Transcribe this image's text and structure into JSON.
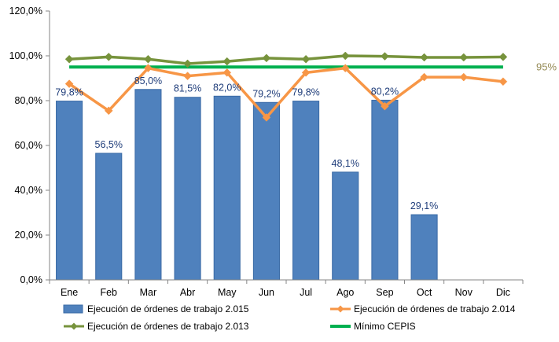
{
  "chart_data": {
    "type": "bar",
    "categories": [
      "Ene",
      "Feb",
      "Mar",
      "Abr",
      "May",
      "Jun",
      "Jul",
      "Ago",
      "Sep",
      "Oct",
      "Nov",
      "Dic"
    ],
    "ylim": [
      0,
      120
    ],
    "yticks": [
      "0,0%",
      "20,0%",
      "40,0%",
      "60,0%",
      "80,0%",
      "100,0%",
      "120,0%"
    ],
    "ytick_values": [
      0,
      20,
      40,
      60,
      80,
      100,
      120
    ],
    "grid": false,
    "legend_position": "bottom",
    "series": [
      {
        "name": "Ejecución de órdenes de trabajo 2.015",
        "type": "bar",
        "color": "#4F81BD",
        "values": [
          79.8,
          56.5,
          85.0,
          81.5,
          82.0,
          79.2,
          79.8,
          48.1,
          80.2,
          29.1,
          null,
          null
        ],
        "labels": [
          "79,8%",
          "56,5%",
          "85,0%",
          "81,5%",
          "82,0%",
          "79,2%",
          "79,8%",
          "48,1%",
          "80,2%",
          "29,1%",
          "",
          ""
        ]
      },
      {
        "name": "Ejecución de órdenes de trabajo 2.014",
        "type": "line",
        "marker": "diamond",
        "color": "#F79646",
        "values": [
          87.5,
          75.5,
          94.5,
          91.0,
          92.5,
          72.5,
          92.5,
          94.5,
          77.5,
          90.5,
          90.5,
          88.5
        ]
      },
      {
        "name": "Ejecución de órdenes de trabajo 2.013",
        "type": "line",
        "marker": "diamond",
        "color": "#77933C",
        "values": [
          98.5,
          99.5,
          98.5,
          96.5,
          97.5,
          99.0,
          98.5,
          100.0,
          99.8,
          99.3,
          99.3,
          99.5
        ]
      },
      {
        "name": "Mínimo CEPIS",
        "type": "line",
        "color": "#00B050",
        "values": [
          95,
          95,
          95,
          95,
          95,
          95,
          95,
          95,
          95,
          95,
          95,
          95
        ]
      }
    ],
    "annotation": {
      "text": "95%",
      "color": "#948A54"
    }
  }
}
